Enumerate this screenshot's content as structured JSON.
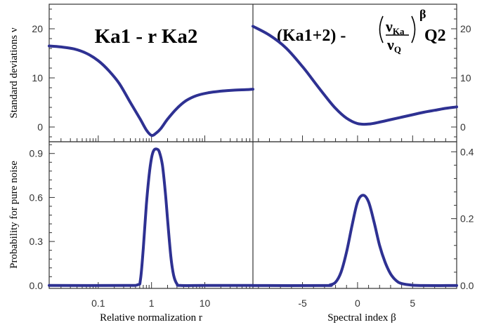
{
  "chart_data": [
    {
      "panel": "top-left",
      "type": "line",
      "title": "Ka1 - r Ka2",
      "xlabel": "",
      "ylabel": "Standard deviations ν",
      "x_scale": "log",
      "xlim": [
        0.012,
        80
      ],
      "ylim": [
        -3,
        25
      ],
      "yticks": [
        0,
        10,
        20
      ],
      "ytick_labels": [
        "0",
        "10",
        "20"
      ],
      "series": [
        {
          "color": "#2e3192",
          "x": [
            0.012,
            0.02,
            0.035,
            0.06,
            0.1,
            0.16,
            0.25,
            0.4,
            0.6,
            0.8,
            1.0,
            1.2,
            1.5,
            2.0,
            3.0,
            4.5,
            7,
            12,
            20,
            35,
            60,
            80
          ],
          "y": [
            16.5,
            16.3,
            15.9,
            15.0,
            13.5,
            11.4,
            8.8,
            5.0,
            1.8,
            -0.6,
            -1.7,
            -1.3,
            -0.3,
            1.6,
            3.8,
            5.4,
            6.4,
            7.0,
            7.3,
            7.5,
            7.6,
            7.7
          ]
        }
      ]
    },
    {
      "panel": "top-right",
      "type": "line",
      "title": "(Ka1+2) - (νKa/νQ)β Q2",
      "formula_parts": {
        "head": "(Ka1+2) - ",
        "numerator": "ν",
        "numerator_sub": "Ka",
        "denominator": "ν",
        "denominator_sub": "Q",
        "exponent": "β",
        "tail": "Q2"
      },
      "xlabel": "",
      "ylabel": "",
      "xlim": [
        -9.5,
        9
      ],
      "ylim": [
        -3,
        25
      ],
      "yticks": [
        0,
        10,
        20
      ],
      "ytick_labels": [
        "0",
        "10",
        "20"
      ],
      "series": [
        {
          "color": "#2e3192",
          "x": [
            -9.5,
            -8,
            -6.5,
            -5,
            -4,
            -3,
            -2,
            -1,
            0,
            1,
            2,
            3,
            4,
            5,
            6,
            7,
            8,
            9
          ],
          "y": [
            20.5,
            18.7,
            16.1,
            12.3,
            9.4,
            6.5,
            3.8,
            1.8,
            0.7,
            0.6,
            1.0,
            1.5,
            2.0,
            2.5,
            3.0,
            3.4,
            3.8,
            4.1
          ]
        }
      ]
    },
    {
      "panel": "bottom-left",
      "type": "line",
      "xlabel": "Relative normalization r",
      "ylabel": "Probability for pure noise",
      "x_scale": "log",
      "xlim": [
        0.012,
        80
      ],
      "ylim": [
        -0.02,
        0.98
      ],
      "xticks": [
        0.1,
        1,
        10
      ],
      "xtick_labels": [
        "0.1",
        "1",
        "10"
      ],
      "yticks": [
        0.0,
        0.3,
        0.6,
        0.9
      ],
      "ytick_labels": [
        "0.0",
        "0.3",
        "0.6",
        "0.9"
      ],
      "series": [
        {
          "color": "#2e3192",
          "x": [
            0.012,
            0.3,
            0.55,
            0.62,
            0.7,
            0.8,
            0.9,
            1.0,
            1.1,
            1.25,
            1.4,
            1.6,
            1.8,
            2.0,
            2.3,
            2.6,
            3.0,
            3.5,
            10,
            80
          ],
          "y": [
            0,
            0,
            0.005,
            0.04,
            0.25,
            0.55,
            0.75,
            0.87,
            0.92,
            0.93,
            0.91,
            0.82,
            0.65,
            0.45,
            0.2,
            0.07,
            0.01,
            0,
            0,
            0
          ]
        }
      ]
    },
    {
      "panel": "bottom-right",
      "type": "line",
      "xlabel": "Spectral index β",
      "ylabel": "",
      "xlim": [
        -9.5,
        9
      ],
      "ylim": [
        -0.0085,
        0.43
      ],
      "xticks": [
        -5,
        0,
        5
      ],
      "xtick_labels": [
        "-5",
        "0",
        "5"
      ],
      "yticks": [
        0.0,
        0.2,
        0.4
      ],
      "ytick_labels": [
        "0.0",
        "0.2",
        "0.4"
      ],
      "series": [
        {
          "color": "#2e3192",
          "x": [
            -9.5,
            -3,
            -2.5,
            -2,
            -1.5,
            -1,
            -0.5,
            0,
            0.5,
            1,
            1.5,
            2,
            2.5,
            3,
            3.5,
            4,
            5,
            6,
            9
          ],
          "y": [
            0,
            0,
            0.002,
            0.01,
            0.04,
            0.1,
            0.18,
            0.25,
            0.27,
            0.25,
            0.19,
            0.12,
            0.07,
            0.035,
            0.015,
            0.006,
            0.001,
            0,
            0
          ]
        }
      ]
    }
  ]
}
